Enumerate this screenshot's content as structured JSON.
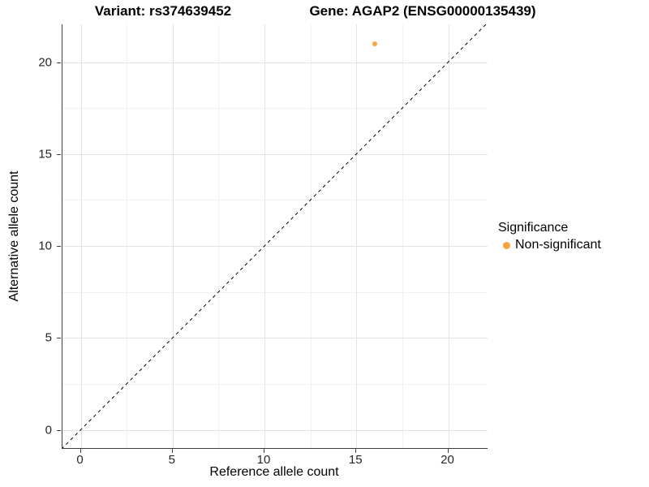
{
  "header": {
    "title_left": "Variant: rs374639452",
    "title_right": "Gene: AGAP2 (ENSG00000135439)"
  },
  "chart_data": {
    "type": "scatter",
    "title_left": "Variant: rs374639452",
    "title_right": "Gene: AGAP2 (ENSG00000135439)",
    "xlabel": "Reference allele count",
    "ylabel": "Alternative allele count",
    "x_ticks": [
      0,
      5,
      10,
      15,
      20
    ],
    "y_ticks": [
      0,
      5,
      10,
      15,
      20
    ],
    "xlim": [
      -1.05,
      22.05
    ],
    "ylim": [
      -1.05,
      22.05
    ],
    "grid": "major+minor",
    "points": [
      {
        "x": 16,
        "y": 21,
        "series": "Non-significant"
      }
    ],
    "reference_line": {
      "type": "identity y=x",
      "style": "dashed",
      "color": "#000000"
    },
    "legend": {
      "title": "Significance",
      "position": "right",
      "items": [
        {
          "label": "Non-significant",
          "color": "#F9A43B"
        }
      ]
    },
    "colors": {
      "point": "#F9A43B",
      "grid_major": "#e3e3e3",
      "grid_minor": "#f1f1f1",
      "axis_line": "#3f3f3f",
      "background": "#ffffff"
    }
  }
}
